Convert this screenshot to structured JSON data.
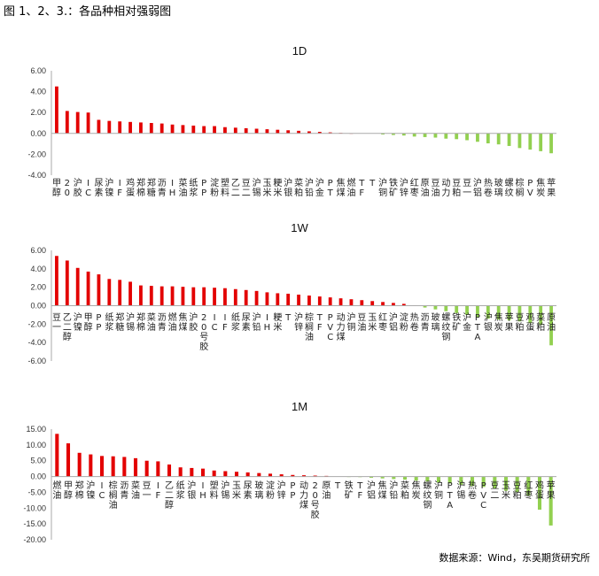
{
  "document": {
    "title": "图 1、2、3.：各品种相对强弱图",
    "source": "数据来源：Wind，东吴期货研究所"
  },
  "colors": {
    "positive": "#e30000",
    "negative": "#92d050",
    "axis": "#aaaaaa",
    "text": "#222222"
  },
  "chart_data": [
    {
      "type": "bar",
      "title": "1D",
      "ylim": [
        -4,
        6
      ],
      "yticks": [
        6,
        4,
        2,
        0,
        -2,
        -4
      ],
      "ytick_labels": [
        "6.00",
        "4.00",
        "2.00",
        "0.00",
        "-2.00",
        "-4.00"
      ],
      "grid": false,
      "legend": "none",
      "categories": [
        "甲醇",
        "20号胶",
        "沪胶",
        "IC",
        "尿素",
        "沪镍",
        "IF",
        "鸡蛋",
        "郑棉",
        "郑糖",
        "沥青",
        "IH",
        "菜油",
        "纸浆",
        "PP",
        "淀粉",
        "塑料",
        "乙二醇",
        "豆二",
        "沪锡",
        "玉米",
        "粳米",
        "沪银",
        "菜粕",
        "沪铅",
        "沪金",
        "PTA",
        "焦煤",
        "燃油",
        "TF",
        "T",
        "沪铜",
        "铁矿",
        "沪锌",
        "红枣",
        "原油",
        "豆油",
        "动力煤",
        "豆粕",
        "豆一",
        "沪铝",
        "热卷",
        "玻璃",
        "螺纹钢",
        "棕榈油",
        "PVC",
        "焦炭",
        "苹果"
      ],
      "values": [
        4.5,
        2.15,
        2.05,
        2.0,
        1.3,
        1.2,
        1.15,
        1.1,
        1.05,
        1.0,
        0.95,
        0.85,
        0.8,
        0.75,
        0.7,
        0.7,
        0.6,
        0.55,
        0.5,
        0.45,
        0.4,
        0.35,
        0.3,
        0.25,
        0.2,
        0.15,
        0.1,
        0.05,
        0.02,
        0.0,
        0.0,
        -0.1,
        -0.15,
        -0.2,
        -0.3,
        -0.35,
        -0.4,
        -0.5,
        -0.55,
        -0.65,
        -0.8,
        -0.95,
        -1.05,
        -1.2,
        -1.4,
        -1.55,
        -1.7,
        -1.9
      ]
    },
    {
      "type": "bar",
      "title": "1W",
      "ylim": [
        -6,
        6
      ],
      "yticks": [
        6,
        4,
        2,
        0,
        -2,
        -4,
        -6
      ],
      "ytick_labels": [
        "6.00",
        "4.00",
        "2.00",
        "0.00",
        "-2.00",
        "-4.00",
        "-6.00"
      ],
      "grid": false,
      "legend": "none",
      "categories": [
        "豆一",
        "乙二醇",
        "沪镍",
        "甲醇",
        "PP",
        "纸浆",
        "郑糖",
        "沪锡",
        "郑棉",
        "菜油",
        "沥青",
        "燃油",
        "焦煤",
        "沪胶",
        "20号胶",
        "IC",
        "IF",
        "纸浆",
        "尿素",
        "沪铅",
        "IH",
        "粳米",
        "T",
        "沪锌",
        "棕榈油",
        "TF",
        "PVC",
        "动力煤",
        "沪铜",
        "豆油",
        "玉米",
        "红枣",
        "沪铝",
        "淀粉",
        "热卷",
        "沥青",
        "玻璃",
        "螺纹钢",
        "铁矿",
        "沪金",
        "PTA",
        "沪银",
        "焦炭",
        "苹果",
        "豆粕",
        "鸡蛋",
        "菜粕",
        "原油"
      ],
      "values": [
        5.4,
        4.9,
        4.1,
        3.7,
        3.4,
        2.9,
        2.8,
        2.6,
        2.2,
        2.15,
        2.1,
        2.1,
        2.05,
        2.0,
        2.0,
        1.95,
        1.9,
        1.8,
        1.7,
        1.6,
        1.45,
        1.35,
        1.3,
        1.2,
        1.1,
        1.0,
        0.9,
        0.8,
        0.7,
        0.6,
        0.5,
        0.4,
        0.3,
        0.2,
        0.05,
        -0.2,
        -0.4,
        -0.6,
        -0.8,
        -1.0,
        -1.3,
        -1.4,
        -1.5,
        -1.6,
        -1.7,
        -1.9,
        -2.1,
        -4.3
      ]
    },
    {
      "type": "bar",
      "title": "1M",
      "ylim": [
        -20,
        15
      ],
      "yticks": [
        15,
        10,
        5,
        0,
        -5,
        -10,
        -15,
        -20
      ],
      "ytick_labels": [
        "15.00",
        "10.00",
        "5.00",
        "0.00",
        "-5.00",
        "-10.00",
        "-15.00",
        "-20.00"
      ],
      "grid": false,
      "legend": "none",
      "categories": [
        "燃油",
        "甲醇",
        "郑棉",
        "沪镍",
        "IC",
        "棕榈油",
        "沥青",
        "菜油",
        "豆一",
        "IF",
        "乙二醇",
        "纸浆",
        "沪银",
        "IH",
        "塑料",
        "沪锡",
        "玉米",
        "尿素",
        "玻璃",
        "淀粉",
        "沪锌",
        "PP",
        "动力煤",
        "20号胶",
        "原油",
        "T",
        "铁矿",
        "TF",
        "沪铝",
        "焦煤",
        "沪铅",
        "菜粕",
        "焦炭",
        "螺纹钢",
        "沪铜",
        "PTA",
        "沪锡",
        "热卷",
        "PVC",
        "豆二",
        "玉米",
        "豆粕",
        "红枣",
        "鸡蛋",
        "苹果"
      ],
      "values": [
        13.5,
        10.5,
        7.5,
        7.0,
        6.5,
        6.4,
        6.2,
        5.8,
        5.0,
        4.8,
        3.8,
        2.9,
        2.7,
        2.5,
        1.9,
        1.7,
        1.5,
        1.3,
        1.1,
        0.9,
        0.7,
        0.5,
        0.4,
        0.3,
        0.2,
        0.0,
        -0.1,
        -0.2,
        -0.4,
        -0.6,
        -0.8,
        -1.0,
        -1.3,
        -1.6,
        -1.9,
        -2.2,
        -2.6,
        -3.0,
        -3.3,
        -3.8,
        -4.5,
        -5.0,
        -6.0,
        -10.5,
        -15.5
      ]
    }
  ]
}
